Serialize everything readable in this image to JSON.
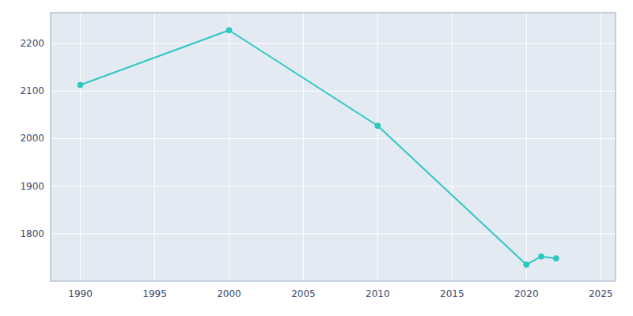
{
  "chart_data": {
    "type": "line",
    "x": [
      1990,
      2000,
      2010,
      2020,
      2021,
      2022
    ],
    "values": [
      2113,
      2228,
      2027,
      1735,
      1752,
      1748
    ],
    "color": "#2EC8C4",
    "marker": "circle",
    "grid": true,
    "xlim": [
      1988,
      2026
    ],
    "ylim": [
      1700,
      2265
    ],
    "xticks": [
      1990,
      1995,
      2000,
      2005,
      2010,
      2015,
      2020,
      2025
    ],
    "yticks": [
      1800,
      1900,
      2000,
      2100,
      2200
    ]
  }
}
